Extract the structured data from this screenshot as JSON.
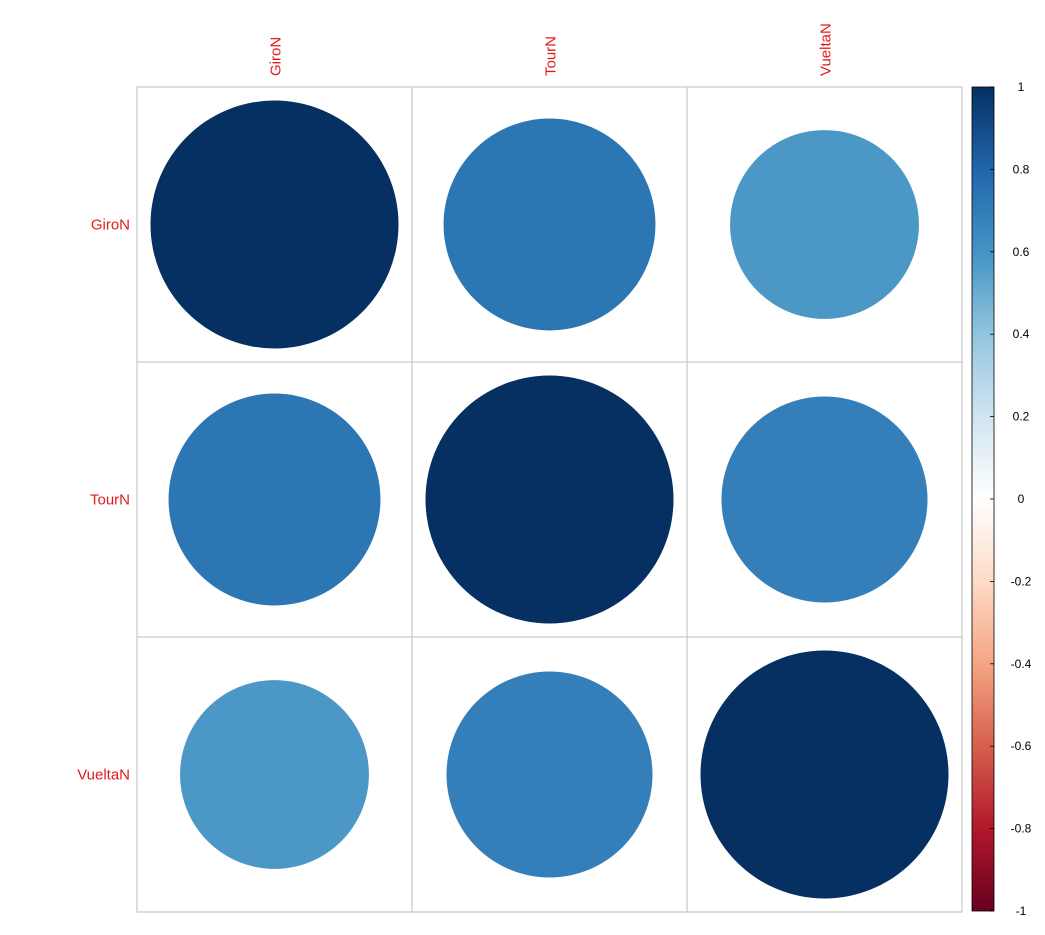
{
  "chart_data": {
    "type": "heatmap",
    "variables": [
      "GiroN",
      "TourN",
      "VueltaN"
    ],
    "matrix": [
      [
        1.0,
        0.73,
        0.58
      ],
      [
        0.73,
        1.0,
        0.69
      ],
      [
        0.58,
        0.69,
        1.0
      ]
    ],
    "colorbar": {
      "range": [
        -1,
        1
      ],
      "tick_labels": [
        "1",
        "0.8",
        "0.6",
        "0.4",
        "0.2",
        "0",
        "-0.2",
        "-0.4",
        "-0.6",
        "-0.8",
        "-1"
      ],
      "tick_values": [
        1,
        0.8,
        0.6,
        0.4,
        0.2,
        0,
        -0.2,
        -0.4,
        -0.6,
        -0.8,
        -1
      ],
      "colors": [
        "#67001F",
        "#B2182B",
        "#D6604D",
        "#F4A582",
        "#FDDBC7",
        "#FFFFFF",
        "#D1E5F0",
        "#92C5DE",
        "#4393C3",
        "#2166AC",
        "#053061"
      ]
    },
    "label_color": "#E21B1B",
    "grid_color": "#BEBEBE"
  }
}
